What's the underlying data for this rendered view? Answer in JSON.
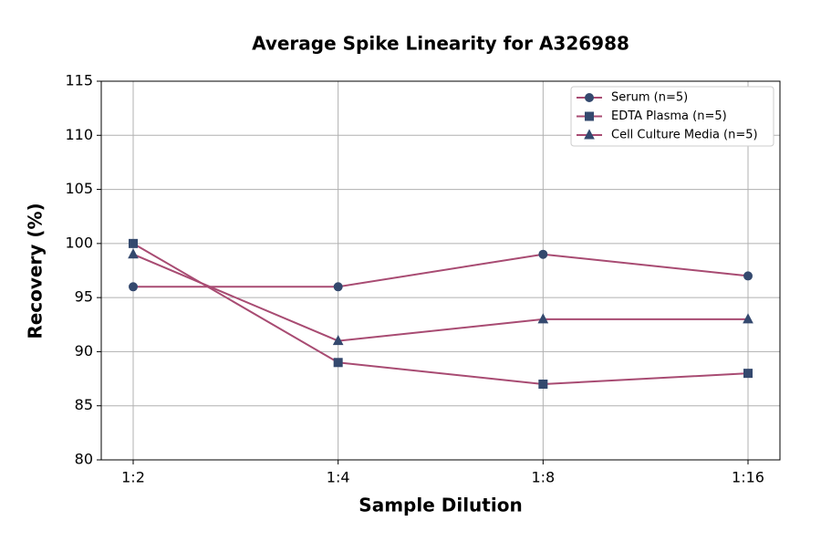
{
  "chart_data": {
    "type": "line",
    "title": "Average Spike Linearity for A326988",
    "x_label": "Sample Dilution",
    "y_label": "Recovery (%)",
    "categories": [
      "1:2",
      "1:4",
      "1:8",
      "1:16"
    ],
    "series": [
      {
        "name": "Serum (n=5)",
        "color": "#a84b72",
        "marker": "circle",
        "marker_color": "#34496e",
        "values": [
          96,
          96,
          99,
          97
        ]
      },
      {
        "name": "EDTA Plasma (n=5)",
        "color": "#a84b72",
        "marker": "square",
        "marker_color": "#34496e",
        "values": [
          100,
          89,
          87,
          88
        ]
      },
      {
        "name": "Cell Culture Media (n=5)",
        "color": "#a84b72",
        "marker": "triangle",
        "marker_color": "#34496e",
        "values": [
          99,
          91,
          93,
          93
        ]
      }
    ],
    "ylim": [
      80,
      115
    ],
    "yticks": [
      80,
      85,
      90,
      95,
      100,
      105,
      110,
      115
    ],
    "grid": true,
    "legend": "upper right"
  }
}
